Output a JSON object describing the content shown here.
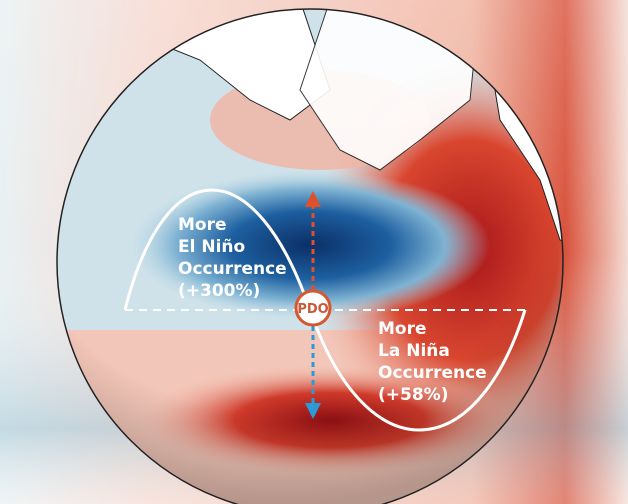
{
  "diagram": {
    "center_label": "PDO",
    "positive_phase": {
      "lines": [
        "More",
        "El Niño",
        "Occurrence",
        "(+300%)"
      ]
    },
    "negative_phase": {
      "lines": [
        "More",
        "La Niña",
        "Occurrence",
        "(+58%)"
      ]
    },
    "colors": {
      "warm": "#c8281e",
      "cool": "#0d3a78",
      "arrow_up": "#e0502a",
      "arrow_down": "#2a9ad8",
      "curve": "#ffffff"
    }
  }
}
